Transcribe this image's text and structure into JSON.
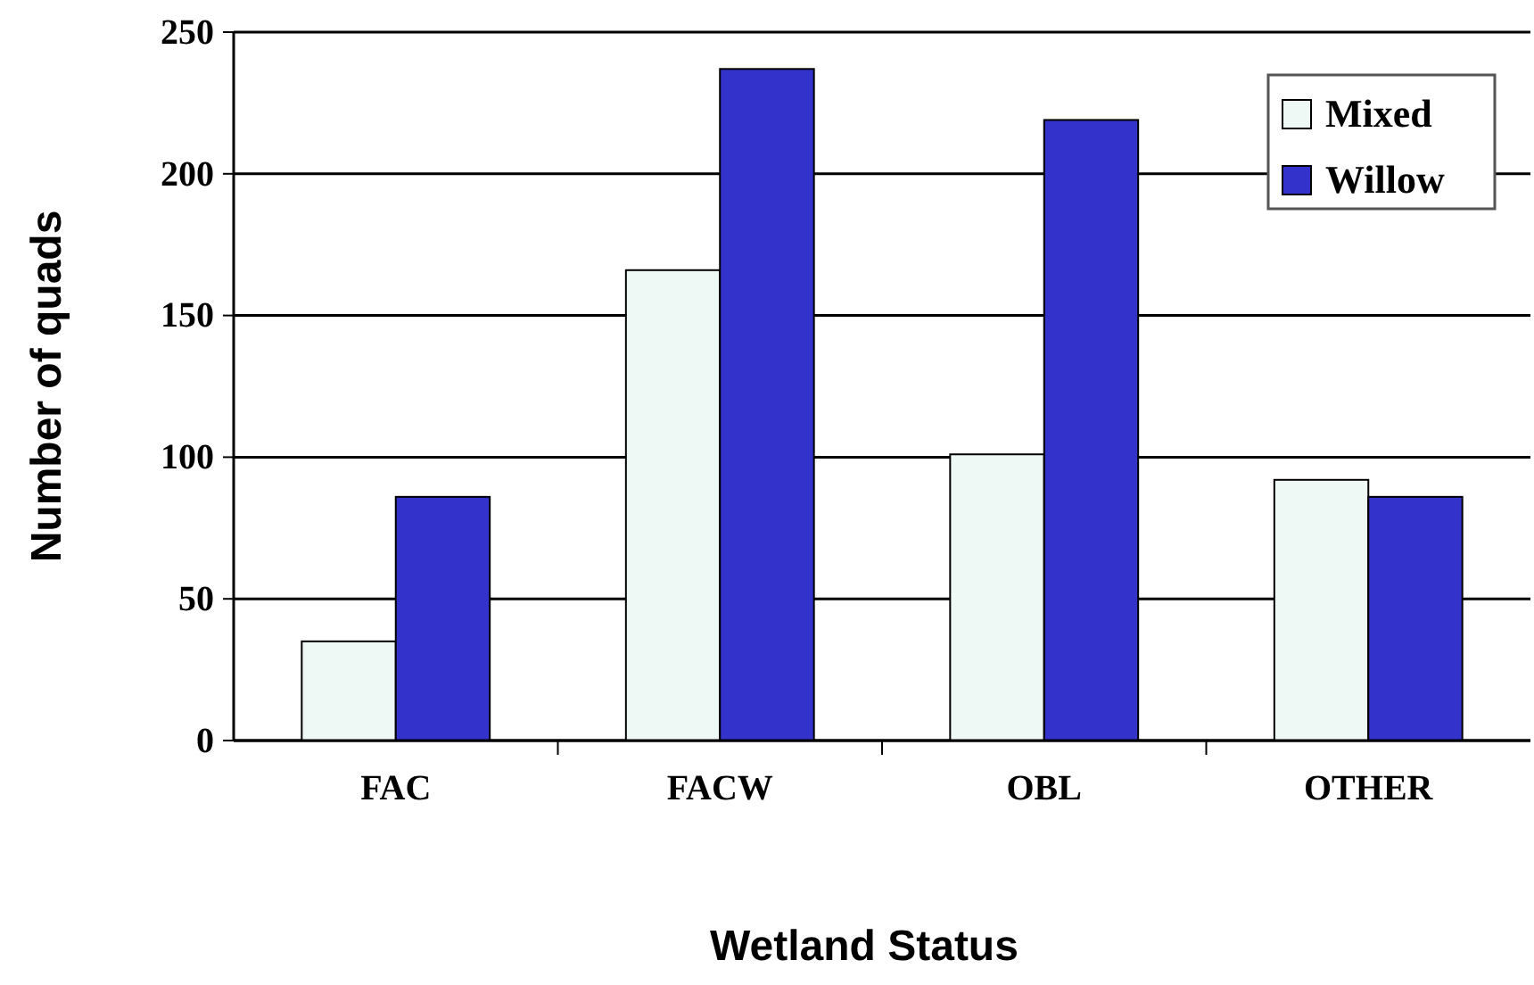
{
  "chart_data": {
    "type": "bar",
    "xlabel": "Wetland Status",
    "ylabel": "Number of quads",
    "categories": [
      "FAC",
      "FACW",
      "OBL",
      "OTHER"
    ],
    "series": [
      {
        "name": "Mixed",
        "color": "#eef8f5",
        "values": [
          35,
          166,
          101,
          92
        ]
      },
      {
        "name": "Willow",
        "color": "#3333cc",
        "values": [
          86,
          237,
          219,
          86
        ]
      }
    ],
    "ylim": [
      0,
      250
    ],
    "yticks": [
      0,
      50,
      100,
      150,
      200,
      250
    ],
    "grid": "y",
    "legend": "top right"
  }
}
